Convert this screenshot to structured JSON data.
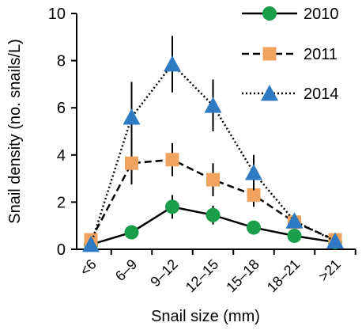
{
  "chart_data": {
    "type": "line",
    "xlabel": "Snail size (mm)",
    "ylabel": "Snail density (no. snails/L)",
    "ylim": [
      0,
      10
    ],
    "yticks": [
      0,
      2,
      4,
      6,
      8,
      10
    ],
    "categories": [
      "<6",
      "6–9",
      "9–12",
      "12–15",
      "15–18",
      "18–21",
      ">21"
    ],
    "legend_position": "top-right",
    "grid": false,
    "series": [
      {
        "name": "2010",
        "color": "#1a9e4a",
        "marker": "circle",
        "line_style": "solid",
        "values": [
          0.2,
          0.72,
          1.8,
          1.45,
          0.92,
          0.57,
          0.3
        ],
        "error": [
          0,
          0,
          0.5,
          0.4,
          0,
          0,
          0
        ]
      },
      {
        "name": "2011",
        "color": "#f0a35e",
        "marker": "square",
        "line_style": "dashed",
        "values": [
          0.4,
          3.65,
          3.8,
          2.95,
          2.3,
          1.15,
          0.4
        ],
        "error": [
          0,
          0.9,
          0.7,
          0.7,
          0.5,
          0.2,
          0
        ]
      },
      {
        "name": "2014",
        "color": "#2e7bc4",
        "marker": "triangle",
        "line_style": "dotted",
        "values": [
          0.2,
          5.6,
          7.85,
          6.1,
          3.25,
          1.2,
          0.35
        ],
        "error": [
          0,
          1.5,
          1.2,
          1.1,
          0.75,
          0.2,
          0
        ]
      }
    ]
  }
}
